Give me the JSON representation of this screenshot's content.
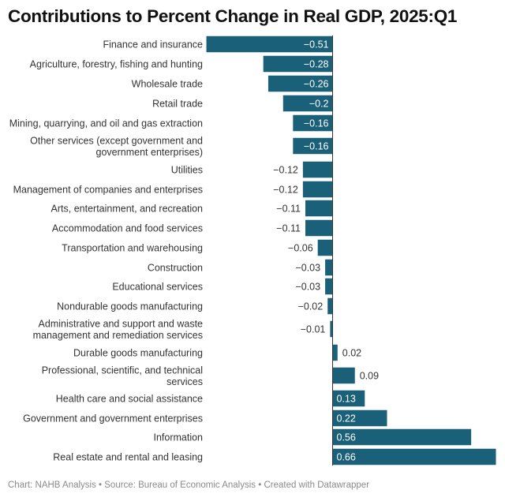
{
  "chart_data": {
    "type": "bar",
    "orientation": "horizontal",
    "title": "Contributions to Percent Change in Real GDP, 2025:Q1",
    "xlabel": "",
    "ylabel": "",
    "grid": false,
    "xlim": [
      -0.51,
      0.66
    ],
    "bar_color": "#1a6079",
    "categories": [
      "Finance and insurance",
      "Agriculture, forestry, fishing and hunting",
      "Wholesale trade",
      "Retail trade",
      "Mining, quarrying, and oil and gas extraction",
      "Other services (except government and government enterprises)",
      "Utilities",
      "Management of companies and enterprises",
      "Arts, entertainment, and recreation",
      "Accommodation and food services",
      "Transportation and warehousing",
      "Construction",
      "Educational services",
      "Nondurable goods manufacturing",
      "Administrative and support and waste management and remediation services",
      "Durable goods manufacturing",
      "Professional, scientific, and technical services",
      "Health care and social assistance",
      "Government and government enterprises",
      "Information",
      "Real estate and rental and leasing"
    ],
    "label_lines": [
      [
        "Finance and insurance"
      ],
      [
        "Agriculture, forestry, fishing and hunting"
      ],
      [
        "Wholesale trade"
      ],
      [
        "Retail trade"
      ],
      [
        "Mining, quarrying, and oil and gas extraction"
      ],
      [
        "Other services (except government and",
        "government enterprises)"
      ],
      [
        "Utilities"
      ],
      [
        "Management of companies and enterprises"
      ],
      [
        "Arts, entertainment, and recreation"
      ],
      [
        "Accommodation and food services"
      ],
      [
        "Transportation and warehousing"
      ],
      [
        "Construction"
      ],
      [
        "Educational services"
      ],
      [
        "Nondurable goods manufacturing"
      ],
      [
        "Administrative and support and waste",
        "management and remediation services"
      ],
      [
        "Durable goods manufacturing"
      ],
      [
        "Professional, scientific, and technical",
        "services"
      ],
      [
        "Health care and social assistance"
      ],
      [
        "Government and government enterprises"
      ],
      [
        "Information"
      ],
      [
        "Real estate and rental and leasing"
      ]
    ],
    "values": [
      -0.51,
      -0.28,
      -0.26,
      -0.2,
      -0.16,
      -0.16,
      -0.12,
      -0.12,
      -0.11,
      -0.11,
      -0.06,
      -0.03,
      -0.03,
      -0.02,
      -0.01,
      0.02,
      0.09,
      0.13,
      0.22,
      0.56,
      0.66
    ],
    "value_labels": [
      "−0.51",
      "−0.28",
      "−0.26",
      "−0.2",
      "−0.16",
      "−0.16",
      "−0.12",
      "−0.12",
      "−0.11",
      "−0.11",
      "−0.06",
      "−0.03",
      "−0.03",
      "−0.02",
      "−0.01",
      "0.02",
      "0.09",
      "0.13",
      "0.22",
      "0.56",
      "0.66"
    ]
  },
  "footer": {
    "text": "Chart: NAHB Analysis • Source: Bureau of Economic Analysis • Created with Datawrapper"
  }
}
